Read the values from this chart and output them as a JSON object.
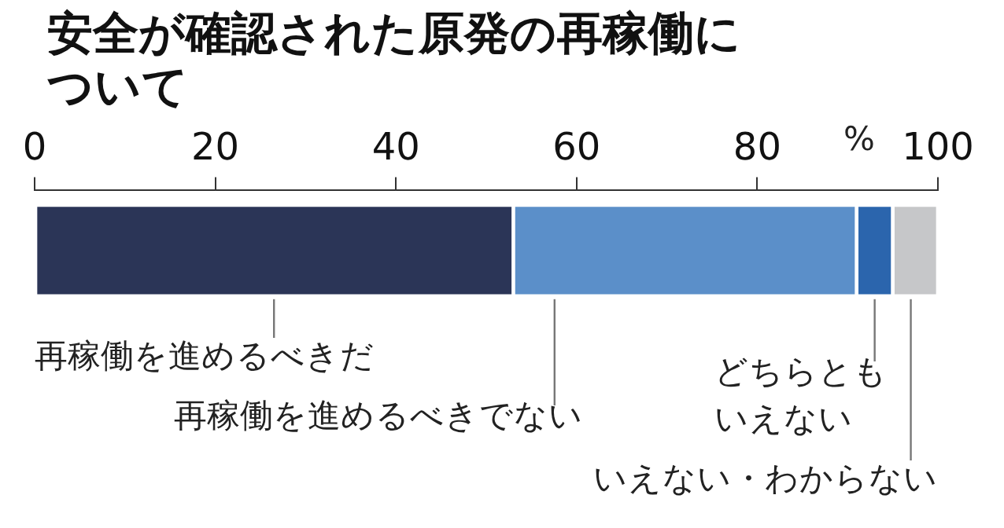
{
  "chart_data": {
    "type": "bar",
    "orientation": "horizontal",
    "stacked": true,
    "title": "安全が確認された原発の再稼働について",
    "xlabel": "%",
    "categories": [
      null
    ],
    "xlim": [
      0,
      100
    ],
    "xticks": [
      0,
      20,
      40,
      60,
      80,
      100
    ],
    "legend": false,
    "grid": false,
    "series": [
      {
        "name": "再稼働を進めるべきだ",
        "color": "#2b3557",
        "values": [
          53
        ]
      },
      {
        "name": "再稼働を進めるべきでない",
        "color": "#5b8fc9",
        "values": [
          38
        ]
      },
      {
        "name": "どちらともいえない",
        "color": "#2b65ad",
        "values": [
          4
        ]
      },
      {
        "name": "いえない・わからない",
        "color": "#c6c7c9",
        "values": [
          5
        ]
      }
    ]
  }
}
